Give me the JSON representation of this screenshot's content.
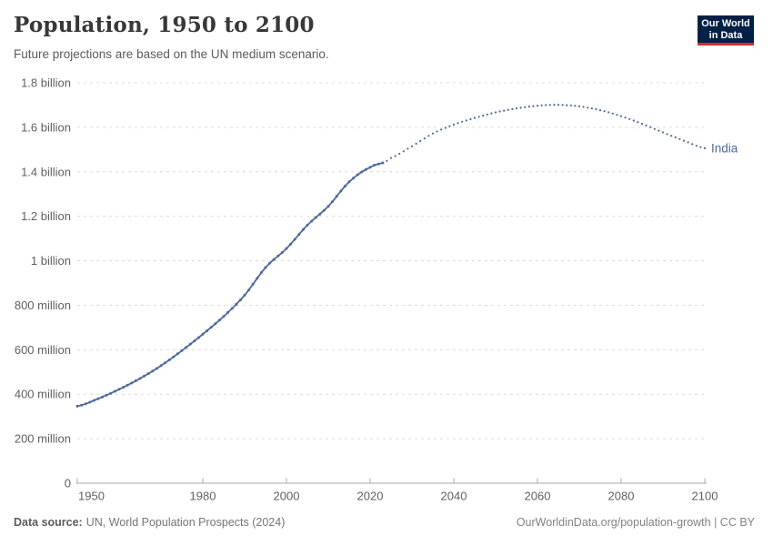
{
  "header": {
    "title": "Population, 1950 to 2100",
    "subtitle": "Future projections are based on the UN medium scenario.",
    "logo": {
      "line1": "Our World",
      "line2": "in Data",
      "bg_color": "#002147",
      "accent_color": "#e0282e"
    }
  },
  "footer": {
    "source_label": "Data source:",
    "source_text": "UN, World Population Prospects (2024)",
    "link_text": "OurWorldinData.org/population-growth | CC BY"
  },
  "chart_data": {
    "type": "line",
    "title": "Population, 1950 to 2100",
    "subtitle": "Future projections are based on the UN medium scenario.",
    "xlabel": "",
    "ylabel": "",
    "xlim": [
      1950,
      2100
    ],
    "ylim": [
      0,
      1800
    ],
    "unit": "people (millions)",
    "grid": "dashed-horizontal",
    "legend_position": "end-of-line-label",
    "x_ticks": [
      1950,
      1980,
      2000,
      2020,
      2040,
      2060,
      2080,
      2100
    ],
    "y_ticks": [
      {
        "value": 0,
        "label": "0"
      },
      {
        "value": 200,
        "label": "200 million"
      },
      {
        "value": 400,
        "label": "400 million"
      },
      {
        "value": 600,
        "label": "600 million"
      },
      {
        "value": 800,
        "label": "800 million"
      },
      {
        "value": 1000,
        "label": "1 billion"
      },
      {
        "value": 1200,
        "label": "1.2 billion"
      },
      {
        "value": 1400,
        "label": "1.4 billion"
      },
      {
        "value": 1600,
        "label": "1.6 billion"
      },
      {
        "value": 1800,
        "label": "1.8 billion"
      }
    ],
    "projection_start_year": 2023,
    "colors": {
      "grid": "#dcdcdc",
      "axis": "#a8a8a8",
      "tick_label": "#606060"
    },
    "series": [
      {
        "name": "India",
        "color": "#4c6a9c",
        "style_observed": "solid-beaded",
        "style_projection": "dotted",
        "points_millions": [
          [
            1950,
            346
          ],
          [
            1955,
            380
          ],
          [
            1960,
            422
          ],
          [
            1965,
            471
          ],
          [
            1970,
            528
          ],
          [
            1975,
            596
          ],
          [
            1980,
            670
          ],
          [
            1985,
            750
          ],
          [
            1990,
            845
          ],
          [
            1995,
            970
          ],
          [
            2000,
            1055
          ],
          [
            2005,
            1160
          ],
          [
            2010,
            1245
          ],
          [
            2015,
            1355
          ],
          [
            2020,
            1420
          ],
          [
            2023,
            1440
          ],
          [
            2025,
            1462
          ],
          [
            2030,
            1515
          ],
          [
            2035,
            1572
          ],
          [
            2040,
            1612
          ],
          [
            2045,
            1642
          ],
          [
            2050,
            1667
          ],
          [
            2055,
            1685
          ],
          [
            2060,
            1697
          ],
          [
            2065,
            1701
          ],
          [
            2070,
            1694
          ],
          [
            2075,
            1677
          ],
          [
            2080,
            1650
          ],
          [
            2085,
            1616
          ],
          [
            2090,
            1577
          ],
          [
            2095,
            1540
          ],
          [
            2100,
            1506
          ]
        ]
      }
    ]
  }
}
